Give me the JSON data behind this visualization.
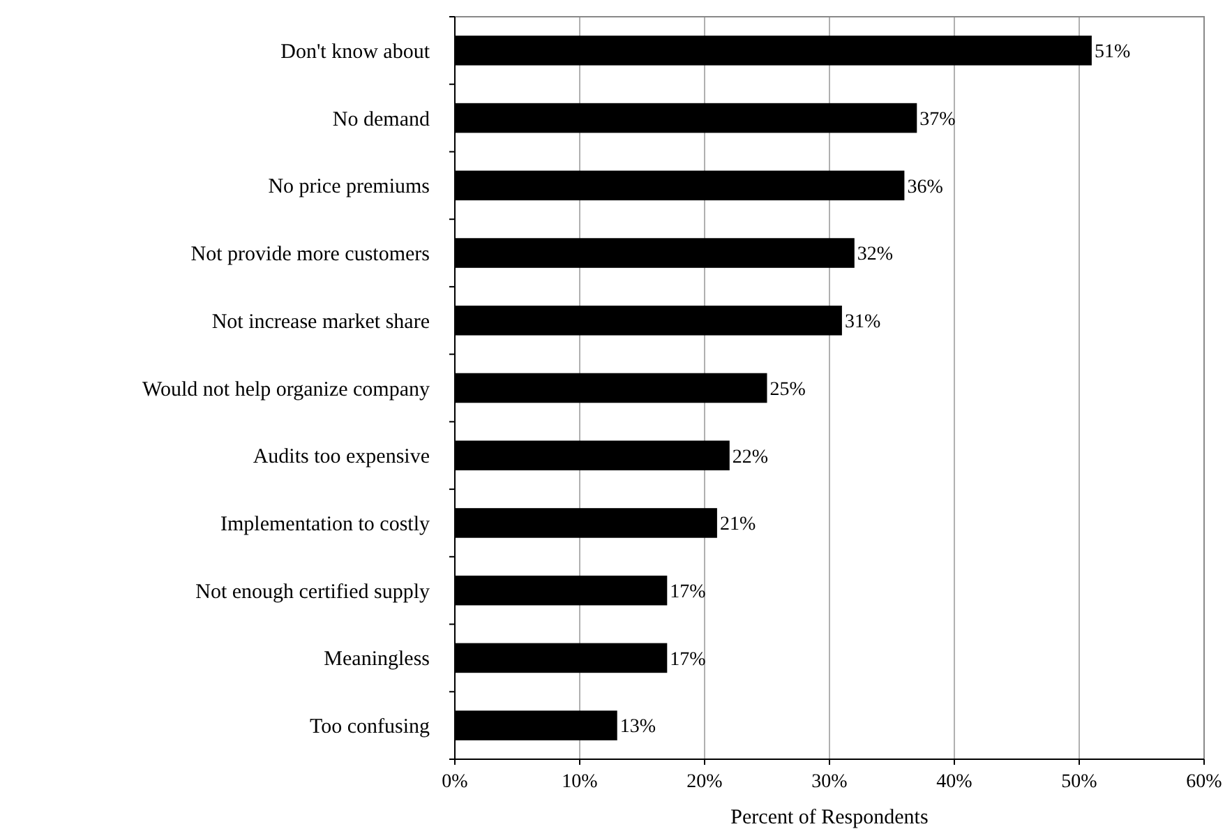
{
  "chart_data": {
    "type": "bar",
    "orientation": "horizontal",
    "xlabel": "Percent of Respondents",
    "categories": [
      "Don't know about",
      "No demand",
      "No price premiums",
      "Not provide more customers",
      "Not increase market share",
      "Would not help organize company",
      "Audits too expensive",
      "Implementation to costly",
      "Not enough certified supply",
      "Meaningless",
      "Too confusing"
    ],
    "values": [
      51,
      37,
      36,
      32,
      31,
      25,
      22,
      21,
      17,
      17,
      13
    ],
    "value_labels": [
      "51%",
      "37%",
      "36%",
      "32%",
      "31%",
      "25%",
      "22%",
      "21%",
      "17%",
      "17%",
      "13%"
    ],
    "color": "#000000",
    "xlim": [
      0,
      60
    ],
    "xticks": [
      {
        "value": 0,
        "label": "0%"
      },
      {
        "value": 10,
        "label": "10%"
      },
      {
        "value": 20,
        "label": "20%"
      },
      {
        "value": 30,
        "label": "30%"
      },
      {
        "value": 40,
        "label": "40%"
      },
      {
        "value": 50,
        "label": "50%"
      },
      {
        "value": 60,
        "label": "60%"
      }
    ],
    "grid": "x"
  }
}
